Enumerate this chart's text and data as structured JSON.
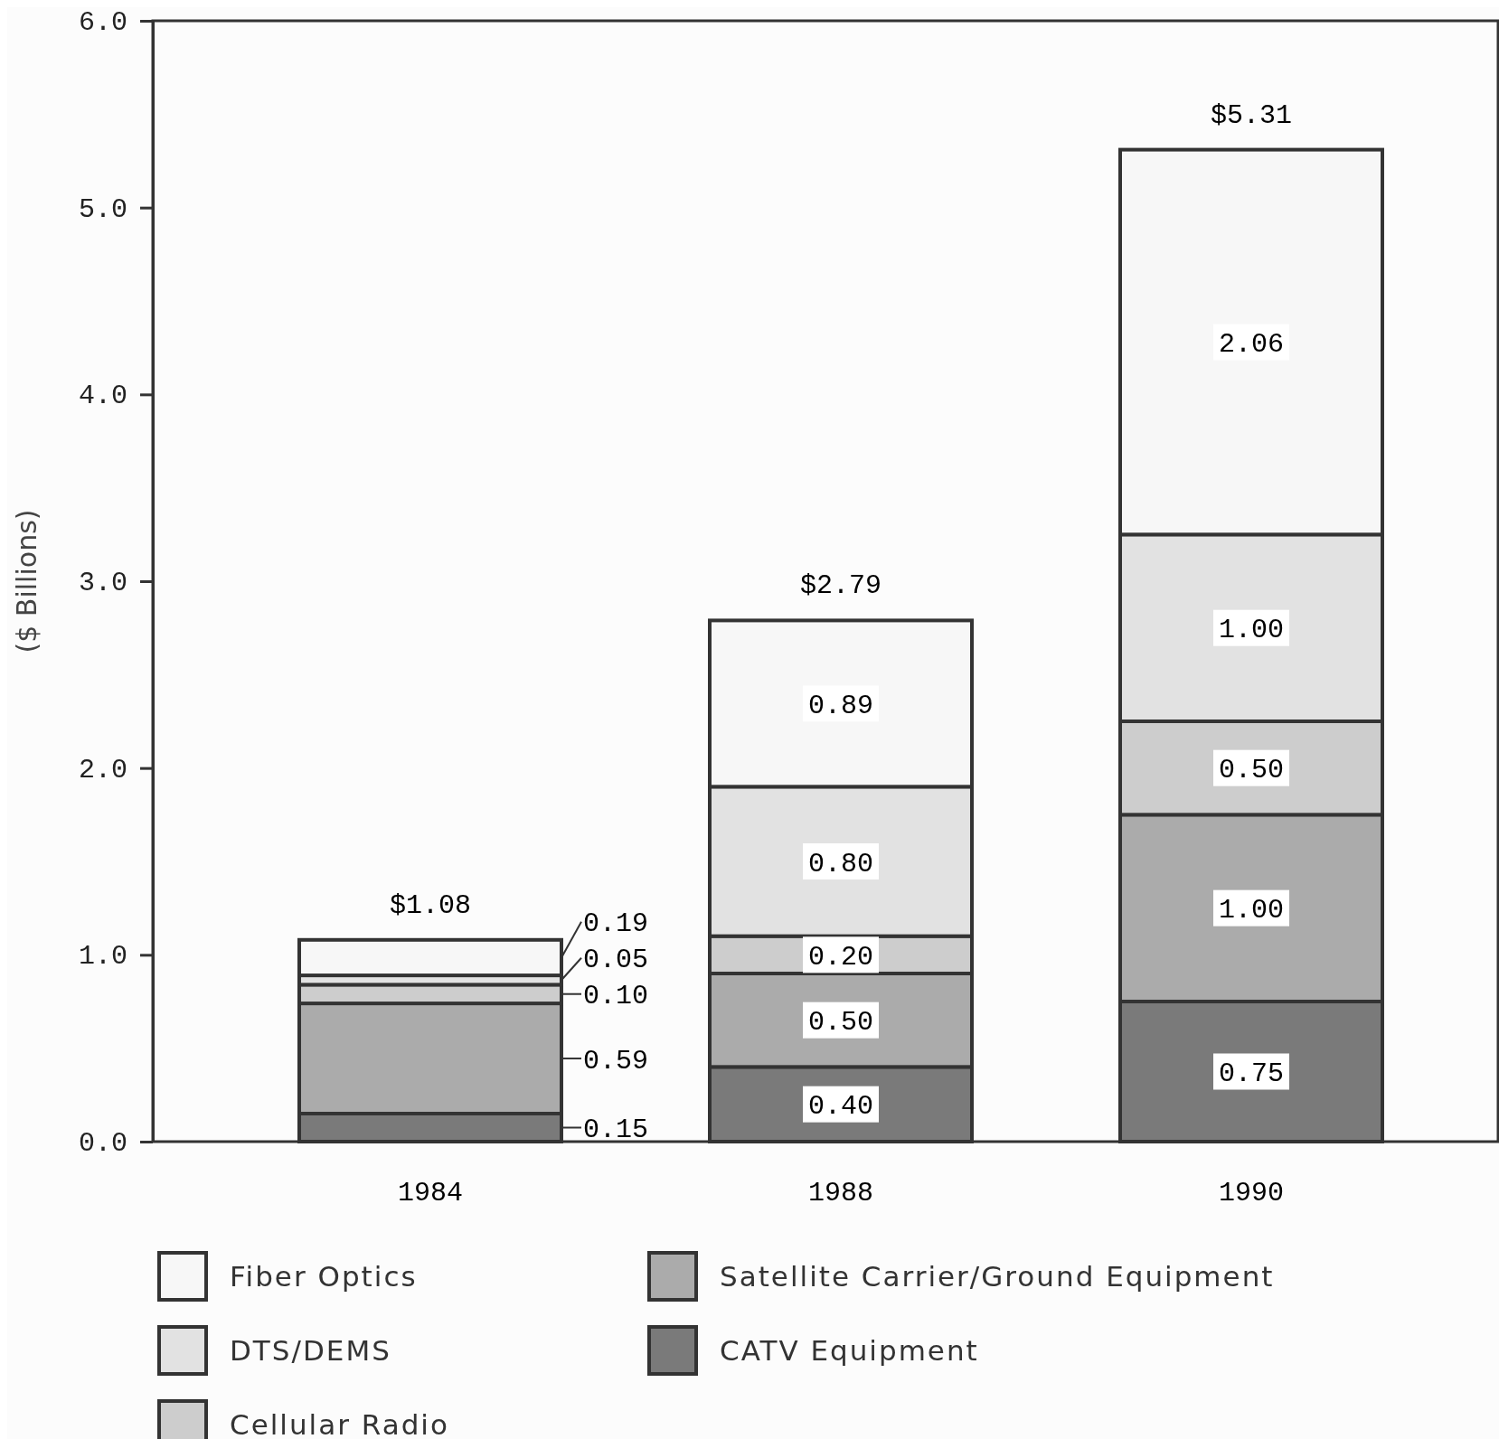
{
  "chart_data": {
    "type": "bar",
    "stacked": true,
    "ylabel": "($ Billions)",
    "categories": [
      "1984",
      "1988",
      "1990"
    ],
    "series": [
      {
        "name": "CATV Equipment",
        "color": "#7a7a7a",
        "values": [
          0.15,
          0.4,
          0.75
        ],
        "value_labels": [
          "0.15",
          "0.40",
          "0.75"
        ]
      },
      {
        "name": "Satellite Carrier/Ground Equipment",
        "color": "#ababab",
        "values": [
          0.59,
          0.5,
          1.0
        ],
        "value_labels": [
          "0.59",
          "0.50",
          "1.00"
        ]
      },
      {
        "name": "Cellular Radio",
        "color": "#cdcdcd",
        "values": [
          0.1,
          0.2,
          0.5
        ],
        "value_labels": [
          "0.10",
          "0.20",
          "0.50"
        ]
      },
      {
        "name": "DTS/DEMS",
        "color": "#e2e2e2",
        "values": [
          0.05,
          0.8,
          1.0
        ],
        "value_labels": [
          "0.05",
          "0.80",
          "1.00"
        ]
      },
      {
        "name": "Fiber Optics",
        "color": "#f7f7f7",
        "values": [
          0.19,
          0.89,
          2.06
        ],
        "value_labels": [
          "0.19",
          "0.89",
          "2.06"
        ]
      }
    ],
    "ylim": [
      0,
      6
    ],
    "yticks": [
      {
        "value": 0,
        "label": "0.0"
      },
      {
        "value": 1,
        "label": "1.0"
      },
      {
        "value": 2,
        "label": "2.0"
      },
      {
        "value": 3,
        "label": "3.0"
      },
      {
        "value": 4,
        "label": "4.0"
      },
      {
        "value": 5,
        "label": "5.0"
      },
      {
        "value": 6,
        "label": "6.0"
      }
    ],
    "totals": [
      "$1.08",
      "$2.79",
      "$5.31"
    ],
    "legend": "bottom"
  }
}
